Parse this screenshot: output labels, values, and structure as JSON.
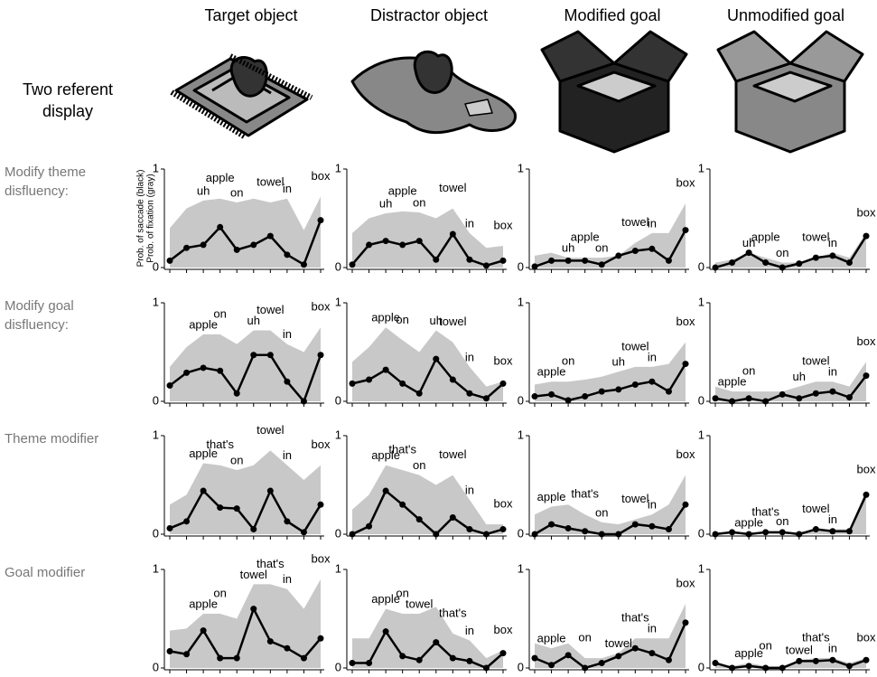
{
  "column_titles": [
    "Target object",
    "Distractor object",
    "Modified goal",
    "Unmodified goal"
  ],
  "display_label": [
    "Two referent",
    "display"
  ],
  "row_labels": [
    [
      "Modify theme",
      "disfluency:"
    ],
    [
      "Modify goal",
      "disfluency:"
    ],
    [
      "Theme modifier"
    ],
    [
      "Goal modifier"
    ]
  ],
  "chart_data": [
    {
      "type": "line",
      "ylabel": [
        "Prob. of saccade (black)",
        "Prob. of fixation (gray)"
      ],
      "categories": [
        null,
        null,
        null,
        null,
        null,
        null,
        null,
        null,
        null,
        null
      ],
      "ylim": [
        0,
        1
      ],
      "yticks": [
        0,
        1
      ],
      "series": [
        {
          "color": "#c8c8c8",
          "values": [
            0.4,
            0.6,
            0.68,
            0.7,
            0.66,
            0.7,
            0.66,
            0.7,
            0.38,
            0.72
          ]
        },
        {
          "color": "#000000",
          "values": [
            0.07,
            0.2,
            0.23,
            0.41,
            0.18,
            0.23,
            0.32,
            0.13,
            0.03,
            0.48
          ]
        }
      ],
      "point_labels": [
        null,
        null,
        "uh",
        "apple",
        "on",
        null,
        "towel",
        "in",
        null,
        "box"
      ]
    },
    {
      "type": "line",
      "categories": [
        null,
        null,
        null,
        null,
        null,
        null,
        null,
        null,
        null,
        null
      ],
      "ylim": [
        0,
        1
      ],
      "yticks": [
        0,
        1
      ],
      "series": [
        {
          "color": "#c8c8c8",
          "values": [
            0.35,
            0.5,
            0.55,
            0.57,
            0.56,
            0.5,
            0.6,
            0.35,
            0.2,
            0.22
          ]
        },
        {
          "color": "#000000",
          "values": [
            0.03,
            0.23,
            0.27,
            0.23,
            0.27,
            0.08,
            0.34,
            0.08,
            0.02,
            0.07
          ]
        }
      ],
      "point_labels": [
        null,
        null,
        "uh",
        "apple",
        "on",
        null,
        "towel",
        "in",
        null,
        "box"
      ]
    },
    {
      "type": "line",
      "categories": [
        null,
        null,
        null,
        null,
        null,
        null,
        null,
        null,
        null,
        null
      ],
      "ylim": [
        0,
        1
      ],
      "yticks": [
        0,
        1
      ],
      "series": [
        {
          "color": "#c8c8c8",
          "values": [
            0.12,
            0.15,
            0.1,
            0.1,
            0.1,
            0.12,
            0.25,
            0.35,
            0.35,
            0.65
          ]
        },
        {
          "color": "#000000",
          "values": [
            0.01,
            0.07,
            0.07,
            0.07,
            0.03,
            0.12,
            0.17,
            0.19,
            0.07,
            0.38
          ]
        }
      ],
      "point_labels": [
        null,
        null,
        "uh",
        "apple",
        "on",
        null,
        "towel",
        "in",
        null,
        "box"
      ]
    },
    {
      "type": "line",
      "categories": [
        null,
        null,
        null,
        null,
        null,
        null,
        null,
        null,
        null,
        null
      ],
      "ylim": [
        0,
        1
      ],
      "yticks": [
        0,
        1
      ],
      "series": [
        {
          "color": "#c8c8c8",
          "values": [
            0.05,
            0.08,
            0.15,
            0.1,
            0.05,
            0.05,
            0.1,
            0.15,
            0.1,
            0.35
          ]
        },
        {
          "color": "#000000",
          "values": [
            0.0,
            0.05,
            0.15,
            0.05,
            0.0,
            0.04,
            0.1,
            0.12,
            0.05,
            0.32
          ]
        }
      ],
      "point_labels": [
        null,
        null,
        "uh",
        "apple",
        "on",
        null,
        "towel",
        "in",
        null,
        "box"
      ]
    },
    {
      "type": "line",
      "categories": [
        null,
        null,
        null,
        null,
        null,
        null,
        null,
        null,
        null,
        null
      ],
      "ylim": [
        0,
        1
      ],
      "yticks": [
        0,
        1
      ],
      "series": [
        {
          "color": "#c8c8c8",
          "values": [
            0.35,
            0.55,
            0.68,
            0.68,
            0.58,
            0.72,
            0.72,
            0.58,
            0.5,
            0.75
          ]
        },
        {
          "color": "#000000",
          "values": [
            0.16,
            0.29,
            0.34,
            0.31,
            0.08,
            0.47,
            0.47,
            0.2,
            0.0,
            0.47
          ]
        }
      ],
      "point_labels": [
        null,
        null,
        "apple",
        "on",
        null,
        "uh",
        "towel",
        "in",
        null,
        "box"
      ]
    },
    {
      "type": "line",
      "categories": [
        null,
        null,
        null,
        null,
        null,
        null,
        null,
        null,
        null,
        null
      ],
      "ylim": [
        0,
        1
      ],
      "yticks": [
        0,
        1
      ],
      "series": [
        {
          "color": "#c8c8c8",
          "values": [
            0.4,
            0.55,
            0.75,
            0.62,
            0.5,
            0.72,
            0.6,
            0.35,
            0.15,
            0.2
          ]
        },
        {
          "color": "#000000",
          "values": [
            0.18,
            0.22,
            0.32,
            0.18,
            0.08,
            0.43,
            0.22,
            0.08,
            0.03,
            0.18
          ]
        }
      ],
      "point_labels": [
        null,
        null,
        "apple",
        "on",
        null,
        "uh",
        "towel",
        "in",
        null,
        "box"
      ]
    },
    {
      "type": "line",
      "categories": [
        null,
        null,
        null,
        null,
        null,
        null,
        null,
        null,
        null,
        null
      ],
      "ylim": [
        0,
        1
      ],
      "yticks": [
        0,
        1
      ],
      "series": [
        {
          "color": "#c8c8c8",
          "values": [
            0.17,
            0.2,
            0.2,
            0.22,
            0.25,
            0.3,
            0.35,
            0.35,
            0.38,
            0.6
          ]
        },
        {
          "color": "#000000",
          "values": [
            0.05,
            0.07,
            0.01,
            0.05,
            0.1,
            0.12,
            0.17,
            0.2,
            0.1,
            0.38
          ]
        }
      ],
      "point_labels": [
        null,
        "apple",
        "on",
        null,
        null,
        "uh",
        "towel",
        "in",
        null,
        "box"
      ]
    },
    {
      "type": "line",
      "categories": [
        null,
        null,
        null,
        null,
        null,
        null,
        null,
        null,
        null,
        null
      ],
      "ylim": [
        0,
        1
      ],
      "yticks": [
        0,
        1
      ],
      "series": [
        {
          "color": "#c8c8c8",
          "values": [
            0.15,
            0.1,
            0.1,
            0.1,
            0.1,
            0.15,
            0.2,
            0.2,
            0.15,
            0.4
          ]
        },
        {
          "color": "#000000",
          "values": [
            0.03,
            0.0,
            0.03,
            0.0,
            0.07,
            0.03,
            0.08,
            0.1,
            0.04,
            0.26
          ]
        }
      ],
      "point_labels": [
        null,
        "apple",
        "on",
        null,
        null,
        "uh",
        "towel",
        "in",
        null,
        "box"
      ]
    },
    {
      "type": "line",
      "categories": [
        null,
        null,
        null,
        null,
        null,
        null,
        null,
        null,
        null,
        null
      ],
      "ylim": [
        0,
        1
      ],
      "yticks": [
        0,
        1
      ],
      "series": [
        {
          "color": "#c8c8c8",
          "values": [
            0.3,
            0.4,
            0.72,
            0.7,
            0.65,
            0.7,
            0.85,
            0.7,
            0.55,
            0.7
          ]
        },
        {
          "color": "#000000",
          "values": [
            0.06,
            0.13,
            0.44,
            0.27,
            0.26,
            0.05,
            0.44,
            0.13,
            0.02,
            0.3
          ]
        }
      ],
      "point_labels": [
        null,
        null,
        "apple",
        "that's",
        "on",
        null,
        "towel",
        "in",
        null,
        "box"
      ]
    },
    {
      "type": "line",
      "categories": [
        null,
        null,
        null,
        null,
        null,
        null,
        null,
        null,
        null,
        null
      ],
      "ylim": [
        0,
        1
      ],
      "yticks": [
        0,
        1
      ],
      "series": [
        {
          "color": "#c8c8c8",
          "values": [
            0.25,
            0.4,
            0.7,
            0.65,
            0.6,
            0.5,
            0.6,
            0.35,
            0.1,
            0.1
          ]
        },
        {
          "color": "#000000",
          "values": [
            0.0,
            0.08,
            0.44,
            0.3,
            0.15,
            0.0,
            0.17,
            0.05,
            0.0,
            0.05
          ]
        }
      ],
      "point_labels": [
        null,
        null,
        "apple",
        "that's",
        "on",
        null,
        "towel",
        "in",
        null,
        "box"
      ]
    },
    {
      "type": "line",
      "categories": [
        null,
        null,
        null,
        null,
        null,
        null,
        null,
        null,
        null,
        null
      ],
      "ylim": [
        0,
        1
      ],
      "yticks": [
        0,
        1
      ],
      "series": [
        {
          "color": "#c8c8c8",
          "values": [
            0.2,
            0.28,
            0.3,
            0.2,
            0.12,
            0.1,
            0.15,
            0.2,
            0.3,
            0.6
          ]
        },
        {
          "color": "#000000",
          "values": [
            0.0,
            0.1,
            0.06,
            0.03,
            0.0,
            0.0,
            0.1,
            0.08,
            0.05,
            0.3
          ]
        }
      ],
      "point_labels": [
        null,
        "apple",
        null,
        "that's",
        "on",
        null,
        "towel",
        "in",
        null,
        "box"
      ]
    },
    {
      "type": "line",
      "categories": [
        null,
        null,
        null,
        null,
        null,
        null,
        null,
        null,
        null,
        null
      ],
      "ylim": [
        0,
        1
      ],
      "yticks": [
        0,
        1
      ],
      "series": [
        {
          "color": "#c8c8c8",
          "values": [
            0.02,
            0.02,
            0.02,
            0.02,
            0.03,
            0.02,
            0.05,
            0.05,
            0.05,
            0.45
          ]
        },
        {
          "color": "#000000",
          "values": [
            0.0,
            0.02,
            0.0,
            0.02,
            0.02,
            0.0,
            0.05,
            0.03,
            0.03,
            0.4
          ]
        }
      ],
      "point_labels": [
        null,
        null,
        "apple",
        "that's",
        "on",
        null,
        "towel",
        "in",
        null,
        "box"
      ]
    },
    {
      "type": "line",
      "categories": [
        null,
        null,
        null,
        null,
        null,
        null,
        null,
        null,
        null,
        null
      ],
      "ylim": [
        0,
        1
      ],
      "yticks": [
        0,
        1
      ],
      "series": [
        {
          "color": "#c8c8c8",
          "values": [
            0.38,
            0.4,
            0.55,
            0.55,
            0.5,
            0.85,
            0.85,
            0.8,
            0.6,
            0.9
          ]
        },
        {
          "color": "#000000",
          "values": [
            0.17,
            0.14,
            0.38,
            0.1,
            0.1,
            0.6,
            0.27,
            0.2,
            0.1,
            0.3
          ]
        }
      ],
      "point_labels": [
        null,
        null,
        "apple",
        "on",
        null,
        "towel",
        "that's",
        "in",
        null,
        "box"
      ]
    },
    {
      "type": "line",
      "categories": [
        null,
        null,
        null,
        null,
        null,
        null,
        null,
        null,
        null,
        null
      ],
      "ylim": [
        0,
        1
      ],
      "yticks": [
        0,
        1
      ],
      "series": [
        {
          "color": "#c8c8c8",
          "values": [
            0.3,
            0.3,
            0.6,
            0.55,
            0.55,
            0.62,
            0.35,
            0.28,
            0.1,
            0.18
          ]
        },
        {
          "color": "#000000",
          "values": [
            0.05,
            0.05,
            0.37,
            0.12,
            0.08,
            0.26,
            0.1,
            0.07,
            0.0,
            0.15
          ]
        }
      ],
      "point_labels": [
        null,
        null,
        "apple",
        "on",
        "towel",
        null,
        "that's",
        "in",
        null,
        "box"
      ]
    },
    {
      "type": "line",
      "categories": [
        null,
        null,
        null,
        null,
        null,
        null,
        null,
        null,
        null,
        null
      ],
      "ylim": [
        0,
        1
      ],
      "yticks": [
        0,
        1
      ],
      "series": [
        {
          "color": "#c8c8c8",
          "values": [
            0.25,
            0.2,
            0.25,
            0.1,
            0.1,
            0.15,
            0.3,
            0.3,
            0.3,
            0.65
          ]
        },
        {
          "color": "#000000",
          "values": [
            0.1,
            0.03,
            0.13,
            0.0,
            0.05,
            0.12,
            0.2,
            0.15,
            0.08,
            0.46
          ]
        }
      ],
      "point_labels": [
        null,
        "apple",
        null,
        "on",
        null,
        "towel",
        "that's",
        "in",
        null,
        "box"
      ]
    },
    {
      "type": "line",
      "categories": [
        null,
        null,
        null,
        null,
        null,
        null,
        null,
        null,
        null,
        null
      ],
      "ylim": [
        0,
        1
      ],
      "yticks": [
        0,
        1
      ],
      "series": [
        {
          "color": "#c8c8c8",
          "values": [
            0.05,
            0.02,
            0.05,
            0.02,
            0.02,
            0.08,
            0.1,
            0.1,
            0.05,
            0.1
          ]
        },
        {
          "color": "#000000",
          "values": [
            0.05,
            0.0,
            0.02,
            0.0,
            0.0,
            0.07,
            0.07,
            0.08,
            0.02,
            0.08
          ]
        }
      ],
      "point_labels": [
        null,
        null,
        "apple",
        "on",
        null,
        "towel",
        "that's",
        "in",
        null,
        "box"
      ]
    }
  ]
}
